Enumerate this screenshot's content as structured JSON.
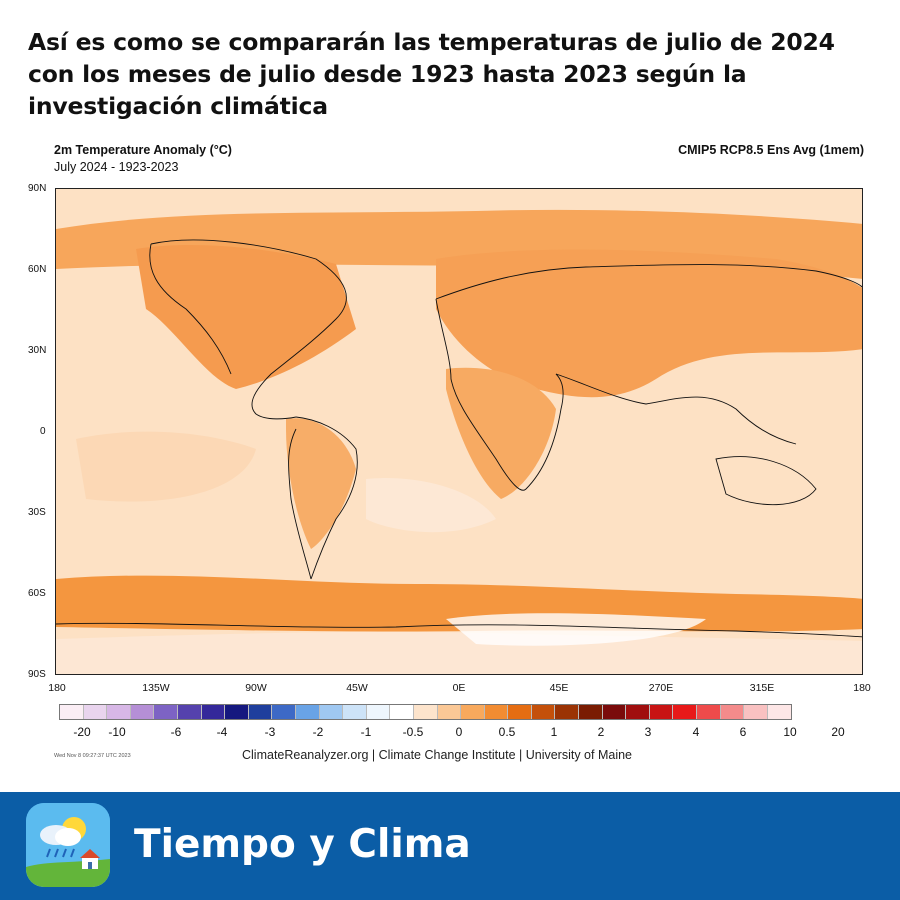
{
  "headline": "Así es como se compararán las temperaturas de julio de 2024 con los meses de julio desde 1923 hasta 2023 según la investigación climática",
  "map": {
    "title": "2m Temperature Anomaly (°C)",
    "subtitle": "July 2024 - 1923-2023",
    "model": "CMIP5 RCP8.5 Ens Avg (1mem)",
    "lat_labels": [
      "90N",
      "60N",
      "30N",
      "0",
      "30S",
      "60S",
      "90S"
    ],
    "lon_labels": [
      "180",
      "135W",
      "90W",
      "45W",
      "0E",
      "45E",
      "270E",
      "315E",
      "180"
    ]
  },
  "colorbar": {
    "colors": [
      "#fbeef5",
      "#e9d4ee",
      "#d7b7e6",
      "#b58fd6",
      "#7d63c4",
      "#5542ad",
      "#34289a",
      "#15187f",
      "#1f3f9d",
      "#3d69c6",
      "#69a3e6",
      "#9fc8f2",
      "#cde3f8",
      "#eef6fd",
      "#ffffff",
      "#fde4cc",
      "#fbc896",
      "#f8a95d",
      "#f28c32",
      "#e56d12",
      "#c4500a",
      "#9b3304",
      "#7a1c02",
      "#7a0b0b",
      "#a00e0e",
      "#c81414",
      "#e81919",
      "#ef4b4b",
      "#f48b8b",
      "#f9c1c1",
      "#fde6e6"
    ],
    "labels": [
      "-20",
      "-10",
      "-6",
      "-4",
      "-3",
      "-2",
      "-1",
      "-0.5",
      "0",
      "0.5",
      "1",
      "2",
      "3",
      "4",
      "6",
      "10",
      "20"
    ]
  },
  "timestamp": "Wed Nov  8 09:27:37 UTC 2023",
  "credits": "ClimateReanalyzer.org | Climate Change Institute | University of Maine",
  "footer": {
    "brand": "Tiempo y Clima",
    "icon": "weather-app-icon"
  }
}
